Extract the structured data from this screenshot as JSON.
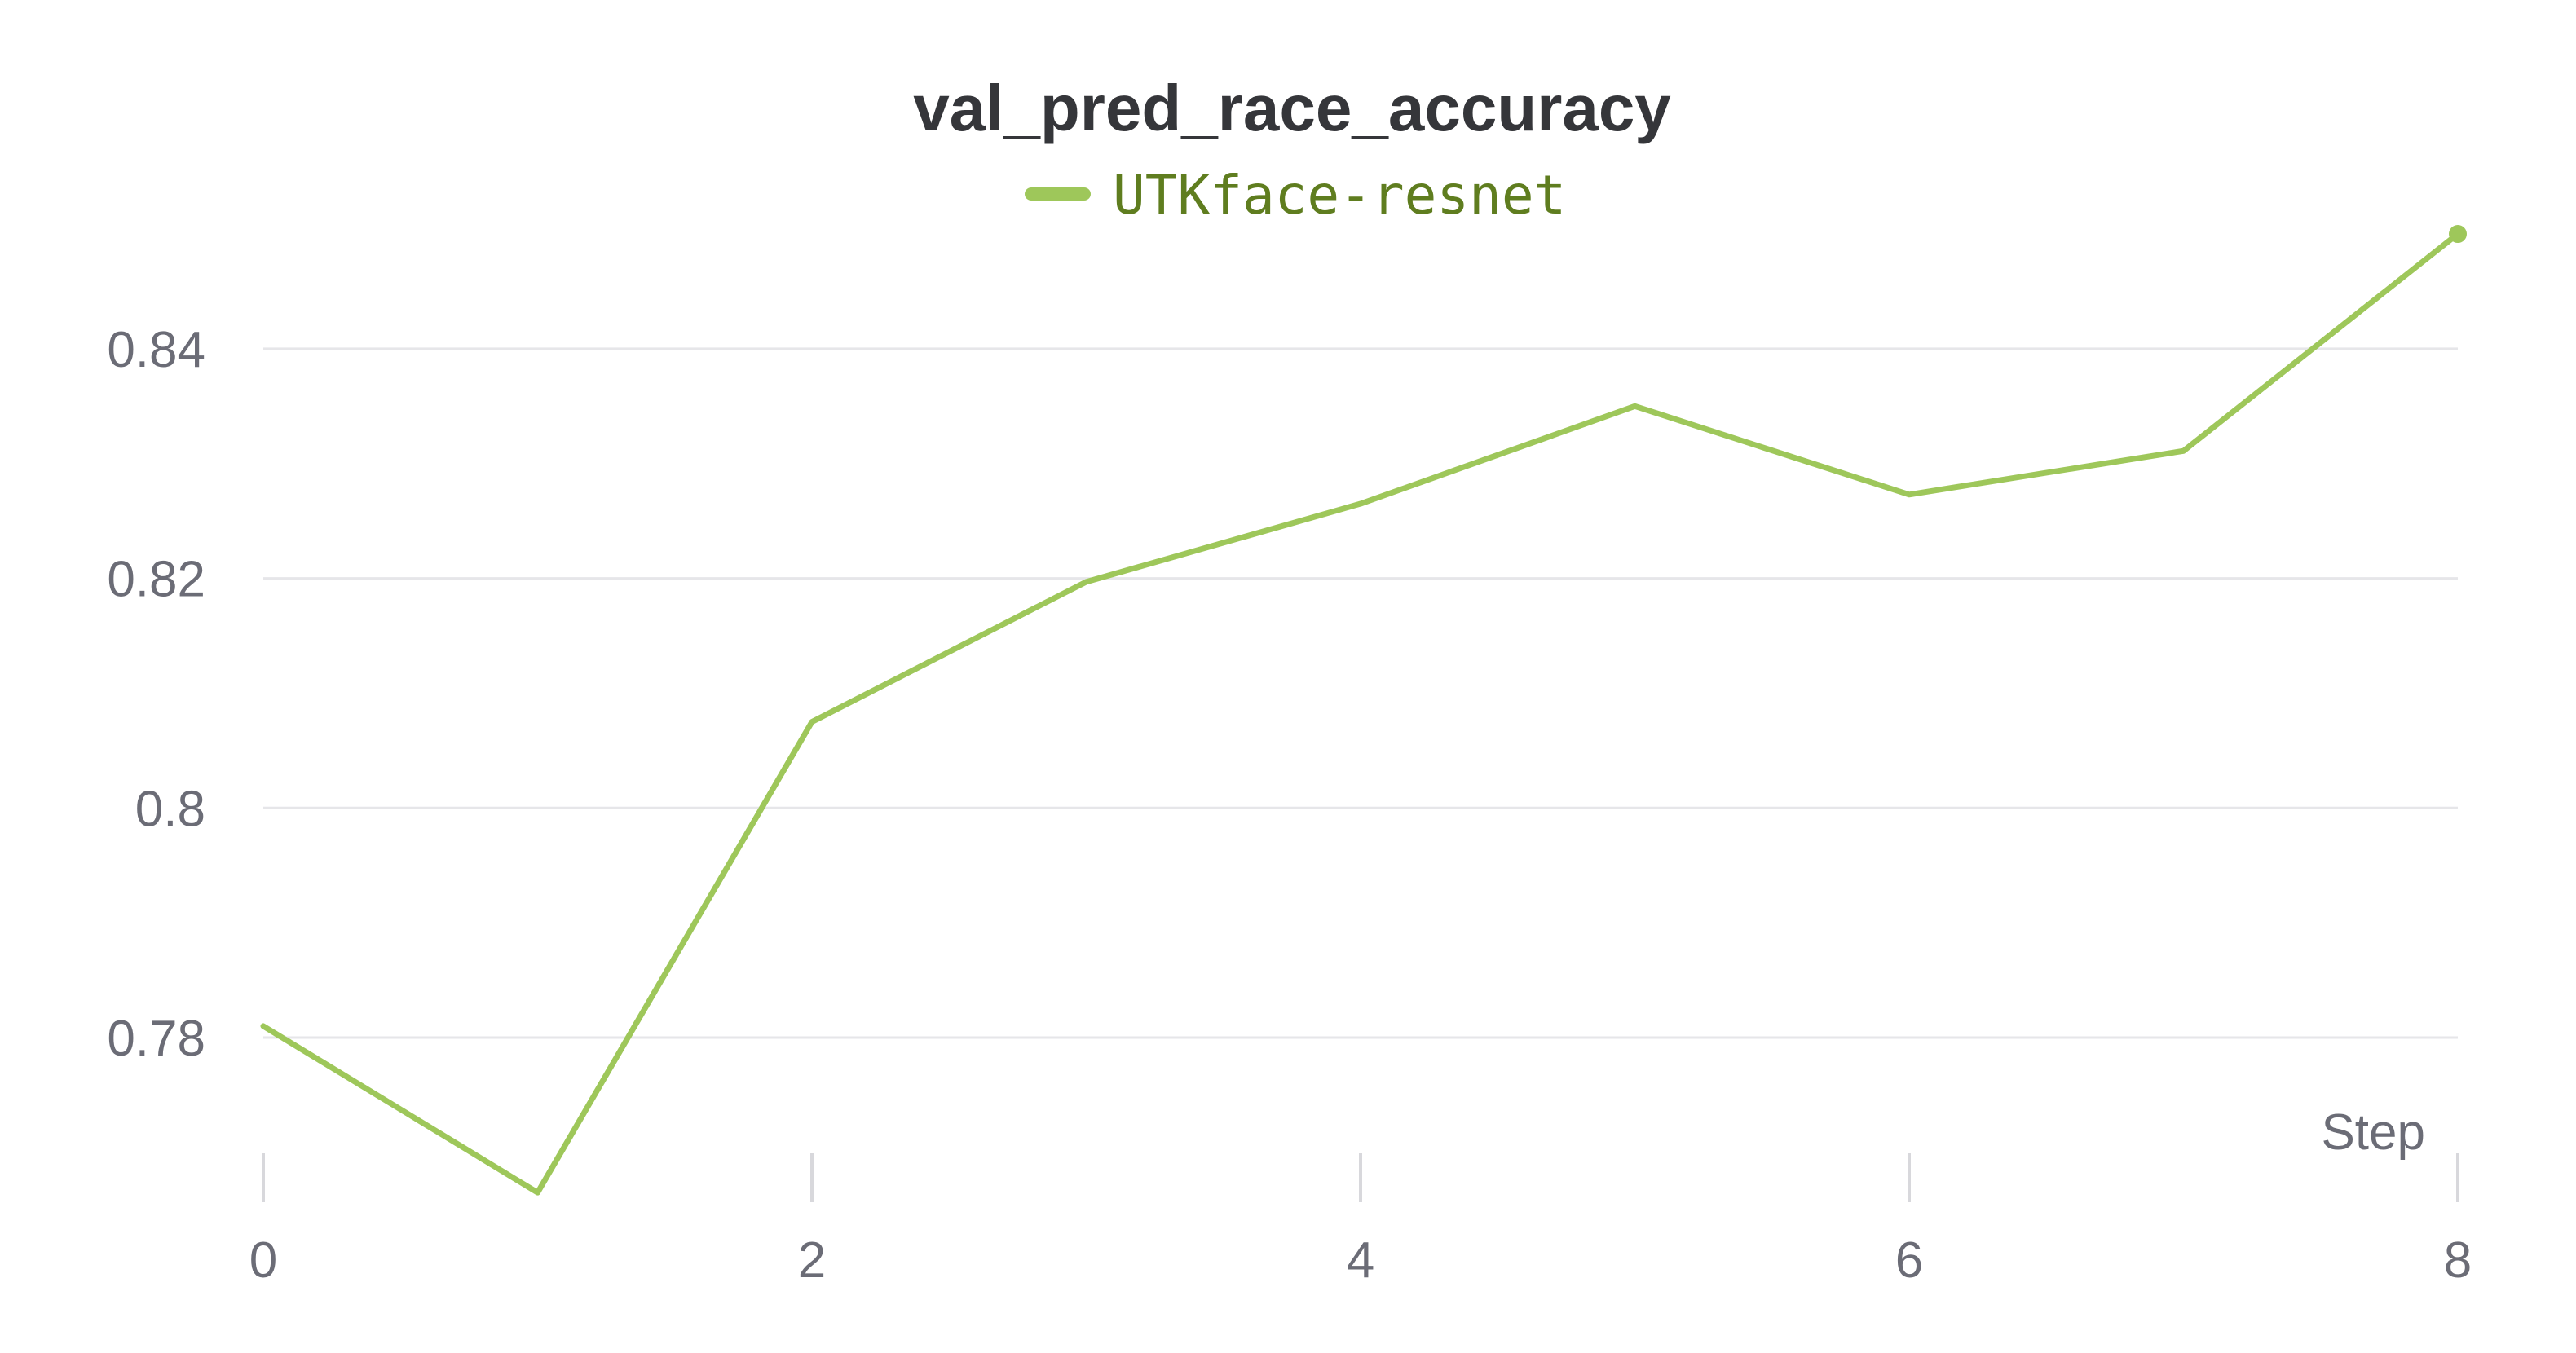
{
  "chart_data": {
    "type": "line",
    "title": "val_pred_race_accuracy",
    "xlabel": "Step",
    "ylabel": "",
    "x_ticks": [
      0,
      2,
      4,
      6,
      8
    ],
    "x_tick_labels": [
      "0",
      "2",
      "4",
      "6",
      "8"
    ],
    "y_ticks": [
      0.78,
      0.8,
      0.82,
      0.84
    ],
    "y_tick_labels": [
      "0.78",
      "0.8",
      "0.82",
      "0.84"
    ],
    "xlim": [
      0,
      8
    ],
    "ylim": [
      0.7685,
      0.8505
    ],
    "grid": "horizontal",
    "legend_position": "top-center",
    "series": [
      {
        "name": "UTKface-resnet",
        "color": "#9ec75a",
        "label_color": "#5f7d1f",
        "x": [
          0,
          1,
          2,
          3,
          4,
          5,
          6,
          7,
          8
        ],
        "values": [
          0.781,
          0.7665,
          0.8075,
          0.8197,
          0.8265,
          0.835,
          0.8273,
          0.8311,
          0.85
        ]
      }
    ]
  }
}
